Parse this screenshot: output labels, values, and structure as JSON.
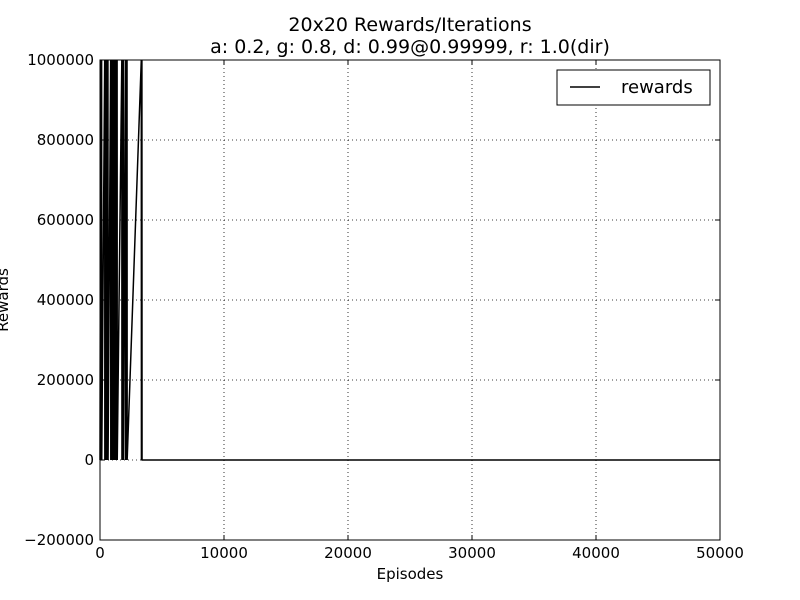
{
  "chart_data": {
    "type": "line",
    "title": "20x20 Rewards/Iterations",
    "subtitle": "a: 0.2, g: 0.8, d: 0.99@0.99999, r: 1.0(dir)",
    "xlabel": "Episodes",
    "ylabel": "Rewards",
    "xlim": [
      0,
      50000
    ],
    "ylim": [
      -200000,
      1000000
    ],
    "xticks": [
      0,
      10000,
      20000,
      30000,
      40000,
      50000
    ],
    "xtick_labels": [
      "0",
      "10000",
      "20000",
      "30000",
      "40000",
      "50000"
    ],
    "yticks": [
      -200000,
      0,
      200000,
      400000,
      600000,
      800000,
      1000000
    ],
    "ytick_labels": [
      "−200000",
      "0",
      "200000",
      "400000",
      "600000",
      "800000",
      "1000000"
    ],
    "grid": true,
    "legend_position": "top-right",
    "series": [
      {
        "name": "rewards",
        "color": "#000000",
        "x": [
          0,
          60,
          70,
          130,
          140,
          380,
          390,
          460,
          470,
          560,
          570,
          600,
          610,
          640,
          650,
          860,
          870,
          900,
          910,
          940,
          950,
          1000,
          1010,
          1040,
          1050,
          1100,
          1110,
          1150,
          1160,
          1210,
          1220,
          1300,
          1310,
          1380,
          1390,
          1760,
          1770,
          1810,
          1820,
          1880,
          1890,
          2050,
          2060,
          2110,
          2120,
          2180,
          2190,
          3330,
          3340,
          3380,
          3390,
          50000
        ],
        "values": [
          0,
          1000000,
          0,
          1000000,
          0,
          1000000,
          0,
          1000000,
          0,
          1000000,
          0,
          1000000,
          0,
          1000000,
          0,
          1000000,
          0,
          1000000,
          0,
          1000000,
          0,
          1000000,
          0,
          1000000,
          0,
          1000000,
          0,
          1000000,
          0,
          1000000,
          0,
          1000000,
          0,
          1000000,
          0,
          1000000,
          0,
          1000000,
          0,
          1000000,
          0,
          1000000,
          0,
          1000000,
          0,
          1000000,
          0,
          1000000,
          0,
          1000000,
          0,
          0
        ]
      }
    ]
  }
}
